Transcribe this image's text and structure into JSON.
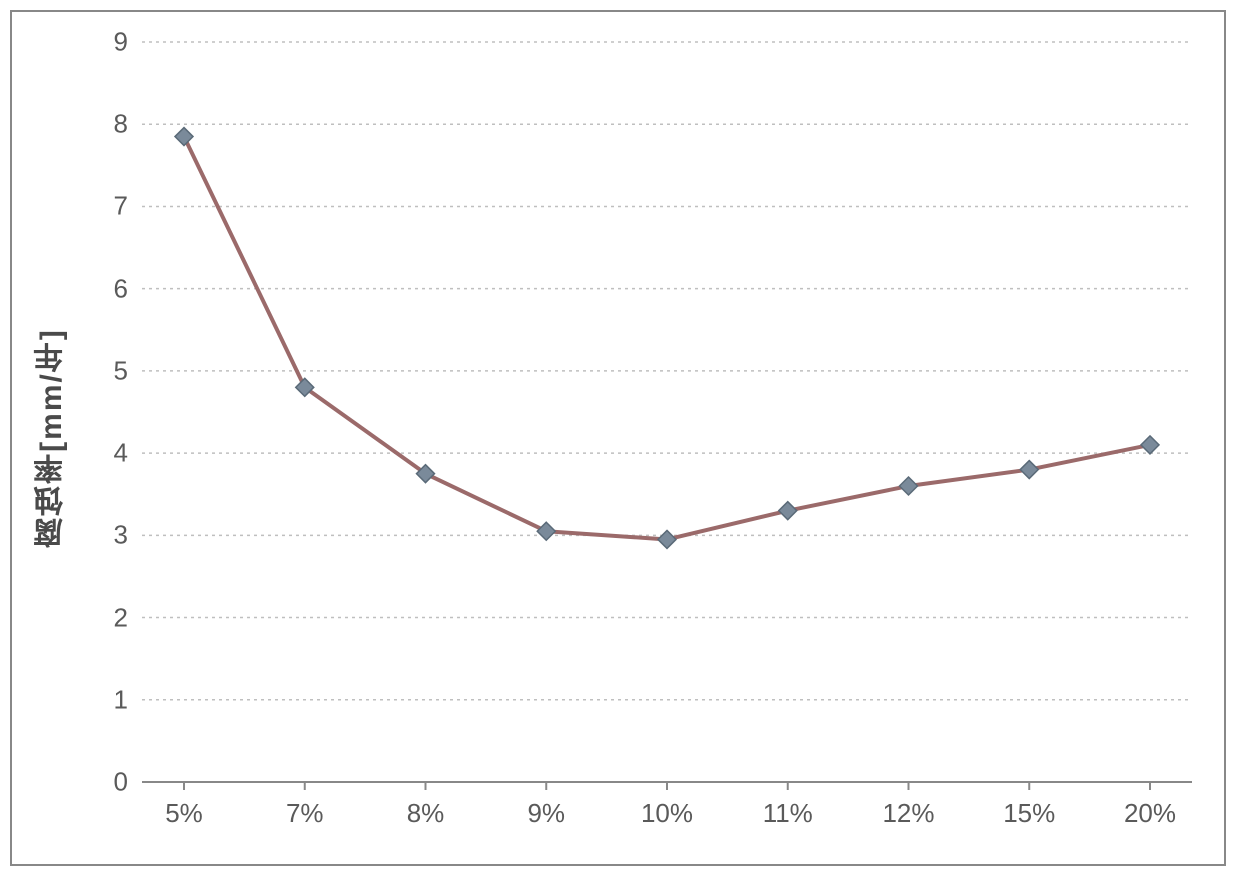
{
  "chart": {
    "type": "line",
    "ylabel": "腐蚀率[mm/年]",
    "ylabel_fontsize": 30,
    "tick_fontsize": 26,
    "categories": [
      "5%",
      "7%",
      "8%",
      "9%",
      "10%",
      "11%",
      "12%",
      "15%",
      "20%"
    ],
    "values": [
      7.85,
      4.8,
      3.75,
      3.05,
      2.95,
      3.3,
      3.6,
      3.8,
      4.1
    ],
    "ylim": [
      0,
      9
    ],
    "ytick_step": 1,
    "yticks": [
      0,
      1,
      2,
      3,
      4,
      5,
      6,
      7,
      8,
      9
    ],
    "background_color": "#ffffff",
    "border_color": "#888888",
    "grid_color": "#bfbfbf",
    "grid_dash": "3,4",
    "axis_line_color": "#888888",
    "line_color": "#9b6a6a",
    "line_width": 4,
    "marker_style": "diamond",
    "marker_size": 18,
    "marker_fill": "#7a8a9a",
    "marker_stroke": "#5a6a78",
    "plot_left_pad": 0.04,
    "plot_right_pad": 0.04
  }
}
